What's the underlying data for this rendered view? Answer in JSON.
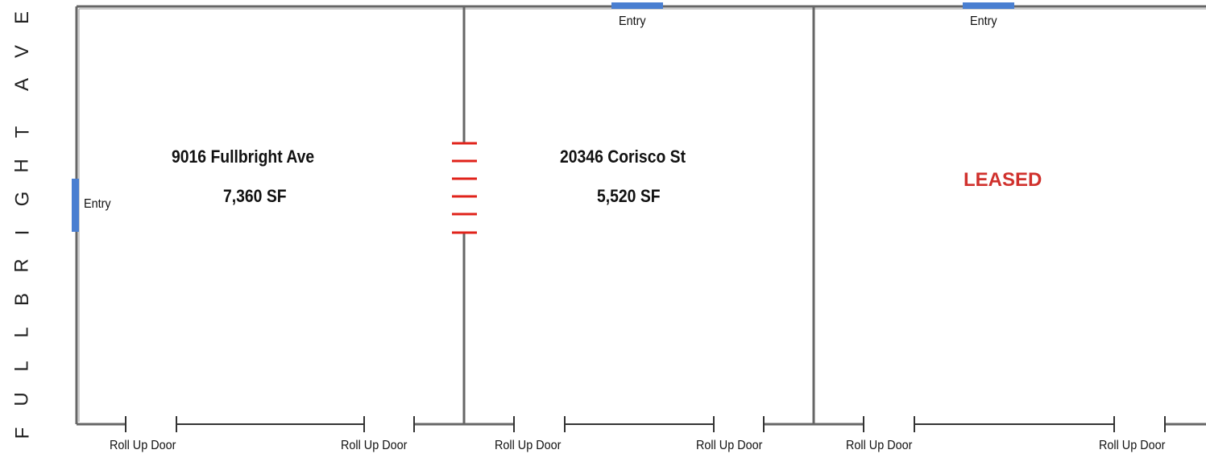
{
  "street": {
    "name": "FULLBRIGHT AVE",
    "letters": [
      "F",
      "U",
      "L",
      "L",
      "B",
      "R",
      "I",
      "G",
      "H",
      "T",
      "",
      "A",
      "V",
      "E"
    ]
  },
  "units": [
    {
      "address": "9016  Fullbright Ave",
      "area": "7,360 SF"
    },
    {
      "address": "20346 Corisco St",
      "area": "5,520 SF"
    },
    {
      "status": "LEASED"
    }
  ],
  "entries": [
    "Entry",
    "Entry",
    "Entry"
  ],
  "roll_up_doors": [
    "Roll Up Door",
    "Roll Up Door",
    "Roll Up Door",
    "Roll Up Door",
    "Roll Up Door",
    "Roll Up Door"
  ],
  "colors": {
    "entry": "#4a7fd1",
    "gate": "#e0221a",
    "leased": "#d0312d",
    "wall": "#666666"
  }
}
